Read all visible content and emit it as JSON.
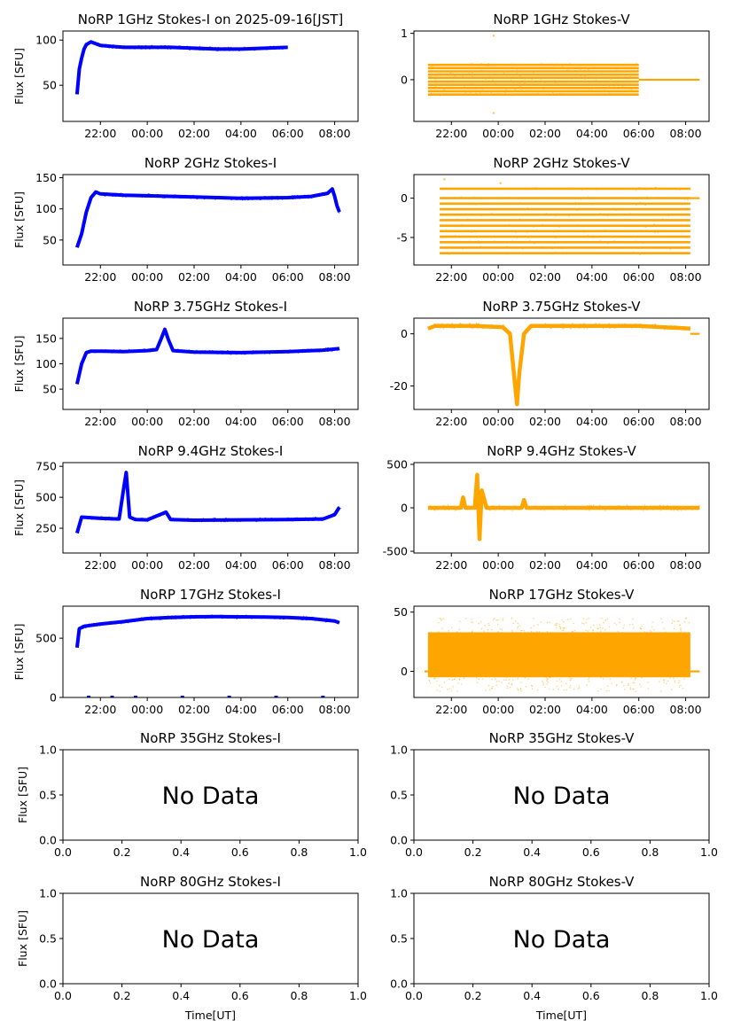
{
  "figure_title": "NoRP 1GHz Stokes-I on 2025-09-16[JST]",
  "colors": {
    "stokes_i": "#0000ff",
    "stokes_v": "#ffa500"
  },
  "time_ticks": [
    "22:00",
    "00:00",
    "02:00",
    "04:00",
    "06:00",
    "08:00"
  ],
  "chart_data": [
    {
      "id": "p1I",
      "type": "line",
      "title": "NoRP 1GHz Stokes-I on 2025-09-16[JST]",
      "ylabel": "Flux [SFU]",
      "xlabel": "",
      "xlim": [
        20.4,
        33.0
      ],
      "x_start": 21.0,
      "x_end": 30.0,
      "ylim": [
        10,
        110
      ],
      "yticks": [
        50,
        100
      ],
      "kind": "I",
      "color": "#0000ff",
      "x": [
        21.0,
        21.1,
        21.2,
        21.3,
        21.4,
        21.6,
        21.8,
        22.0,
        23.0,
        24.0,
        25.0,
        26.0,
        27.0,
        28.0,
        29.0,
        30.0
      ],
      "y": [
        40,
        68,
        80,
        90,
        95,
        98,
        96,
        94,
        92,
        92,
        92,
        91,
        90,
        90,
        91,
        92
      ]
    },
    {
      "id": "p1V",
      "type": "scatter",
      "title": "NoRP 1GHz Stokes-V",
      "ylabel": "",
      "xlabel": "",
      "xlim": [
        20.4,
        33.0
      ],
      "x_start": 21.0,
      "x_end": 30.0,
      "flat_end": 32.6,
      "ylim": [
        -0.9,
        1.05
      ],
      "yticks": [
        0,
        1
      ],
      "kind": "V",
      "color": "#ffa500",
      "levels": [
        -0.32,
        -0.25,
        -0.18,
        -0.11,
        -0.04,
        0.04,
        0.11,
        0.18,
        0.25,
        0.32
      ],
      "flat_value": 0,
      "spikes": [
        {
          "x": 23.8,
          "y": 0.95
        },
        {
          "x": 23.8,
          "y": -0.72
        }
      ]
    },
    {
      "id": "p2I",
      "type": "line",
      "title": "NoRP 2GHz Stokes-I",
      "ylabel": "Flux [SFU]",
      "xlabel": "",
      "xlim": [
        20.4,
        33.0
      ],
      "x_start": 21.0,
      "x_end": 32.2,
      "ylim": [
        10,
        155
      ],
      "yticks": [
        50,
        100,
        150
      ],
      "kind": "I",
      "color": "#0000ff",
      "x": [
        21.0,
        21.2,
        21.4,
        21.6,
        21.8,
        22.0,
        23.0,
        24.0,
        26.0,
        28.0,
        30.0,
        31.0,
        31.7,
        31.9,
        32.0,
        32.1,
        32.2
      ],
      "y": [
        38,
        60,
        95,
        118,
        127,
        124,
        122,
        121,
        119,
        117,
        118,
        120,
        125,
        132,
        120,
        105,
        95
      ]
    },
    {
      "id": "p2V",
      "type": "scatter",
      "title": "NoRP 2GHz Stokes-V",
      "ylabel": "",
      "xlabel": "",
      "xlim": [
        20.4,
        33.0
      ],
      "x_start": 21.5,
      "x_end": 32.2,
      "flat_end": 32.6,
      "ylim": [
        -8.5,
        3
      ],
      "yticks": [
        -5,
        0
      ],
      "kind": "V",
      "color": "#ffa500",
      "levels": [
        1.2,
        0,
        -0.7,
        -1.4,
        -2.1,
        -2.8,
        -3.5,
        -4.2,
        -4.9,
        -5.6,
        -6.3,
        -7.0
      ],
      "flat_value": 0,
      "spikes": [
        {
          "x": 21.7,
          "y": 2.4
        },
        {
          "x": 24.1,
          "y": 1.9
        }
      ]
    },
    {
      "id": "p3I",
      "type": "line",
      "title": "NoRP 3.75GHz Stokes-I",
      "ylabel": "Flux [SFU]",
      "xlabel": "",
      "xlim": [
        20.4,
        33.0
      ],
      "x_start": 21.0,
      "x_end": 32.2,
      "ylim": [
        10,
        190
      ],
      "yticks": [
        50,
        100,
        150
      ],
      "kind": "I",
      "color": "#0000ff",
      "x": [
        21.0,
        21.2,
        21.4,
        21.6,
        22.0,
        23.0,
        24.0,
        24.4,
        24.6,
        24.75,
        24.9,
        25.1,
        26.0,
        28.0,
        30.0,
        31.5,
        32.2
      ],
      "y": [
        60,
        100,
        122,
        125,
        125,
        124,
        126,
        128,
        150,
        168,
        148,
        126,
        123,
        122,
        124,
        127,
        130
      ]
    },
    {
      "id": "p3V",
      "type": "line",
      "title": "NoRP 3.75GHz Stokes-V",
      "ylabel": "",
      "xlabel": "",
      "xlim": [
        20.4,
        33.0
      ],
      "x_start": 21.0,
      "x_end": 32.2,
      "flat_end": 32.6,
      "ylim": [
        -29,
        6
      ],
      "yticks": [
        -20,
        0
      ],
      "kind": "V",
      "color": "#ffa500",
      "x": [
        21.0,
        21.3,
        22.0,
        23.0,
        24.2,
        24.5,
        24.7,
        24.8,
        24.9,
        25.1,
        25.4,
        26.0,
        28.0,
        30.0,
        32.2
      ],
      "y": [
        2,
        3,
        3,
        3,
        2.5,
        0,
        -18,
        -27,
        -15,
        0,
        3,
        3,
        3,
        3,
        2
      ]
    },
    {
      "id": "p4I",
      "type": "line",
      "title": "NoRP 9.4GHz Stokes-I",
      "ylabel": "Flux [SFU]",
      "xlabel": "",
      "xlim": [
        20.4,
        33.0
      ],
      "x_start": 21.0,
      "x_end": 32.2,
      "ylim": [
        50,
        780
      ],
      "yticks": [
        250,
        500,
        750
      ],
      "kind": "I",
      "color": "#0000ff",
      "x": [
        21.0,
        21.2,
        22.0,
        22.8,
        23.0,
        23.1,
        23.25,
        23.5,
        24.0,
        24.8,
        25.0,
        26.0,
        28.0,
        30.0,
        31.5,
        32.0,
        32.2
      ],
      "y": [
        210,
        340,
        330,
        325,
        580,
        700,
        340,
        320,
        318,
        380,
        320,
        315,
        318,
        320,
        325,
        360,
        420
      ]
    },
    {
      "id": "p4V",
      "type": "line",
      "title": "NoRP 9.4GHz Stokes-V",
      "ylabel": "",
      "xlabel": "",
      "xlim": [
        20.4,
        33.0
      ],
      "x_start": 21.0,
      "x_end": 32.6,
      "flat_end": 32.6,
      "ylim": [
        -520,
        520
      ],
      "yticks": [
        -500,
        0,
        500
      ],
      "kind": "V",
      "color": "#ffa500",
      "x": [
        21.0,
        22.4,
        22.5,
        22.6,
        23.0,
        23.1,
        23.2,
        23.3,
        23.5,
        25.0,
        25.1,
        25.2,
        28.0,
        30.0,
        32.6
      ],
      "y": [
        0,
        0,
        120,
        0,
        0,
        380,
        -360,
        200,
        0,
        0,
        90,
        0,
        0,
        0,
        0
      ]
    },
    {
      "id": "p5I",
      "type": "line",
      "title": "NoRP 17GHz Stokes-I",
      "ylabel": "Flux [SFU]",
      "xlabel": "",
      "xlim": [
        20.4,
        33.0
      ],
      "x_start": 21.0,
      "x_end": 32.2,
      "ylim": [
        0,
        770
      ],
      "yticks": [
        0,
        500
      ],
      "kind": "I",
      "color": "#0000ff",
      "x": [
        21.0,
        21.1,
        21.3,
        22.0,
        23.0,
        24.0,
        25.0,
        26.0,
        27.0,
        28.0,
        29.0,
        30.0,
        31.0,
        32.0,
        32.2
      ],
      "y": [
        420,
        580,
        600,
        620,
        640,
        665,
        675,
        680,
        682,
        680,
        678,
        675,
        665,
        645,
        630
      ],
      "zero_dots": [
        21.5,
        22.5,
        23.5,
        25.5,
        27.5,
        29.5,
        31.5
      ]
    },
    {
      "id": "p5V",
      "type": "scatter",
      "title": "NoRP 17GHz Stokes-V",
      "ylabel": "",
      "xlabel": "",
      "xlim": [
        20.4,
        33.0
      ],
      "x_start": 21.0,
      "x_end": 32.2,
      "flat_end": 32.6,
      "ylim": [
        -22,
        55
      ],
      "yticks": [
        0,
        50
      ],
      "kind": "band",
      "color": "#ffa500",
      "band": [
        -5,
        33
      ],
      "flat_value": 0
    },
    {
      "id": "p6I",
      "type": "empty",
      "title": "NoRP 35GHz Stokes-I",
      "ylabel": "Flux [SFU]",
      "xlabel": "",
      "xlim": [
        0,
        1
      ],
      "ylim": [
        0,
        1
      ],
      "yticks": [
        "0.0",
        "0.5",
        "1.0"
      ],
      "xticks": [
        "0.0",
        "0.2",
        "0.4",
        "0.6",
        "0.8",
        "1.0"
      ],
      "message": "No Data"
    },
    {
      "id": "p6V",
      "type": "empty",
      "title": "NoRP 35GHz Stokes-V",
      "ylabel": "",
      "xlabel": "",
      "xlim": [
        0,
        1
      ],
      "ylim": [
        0,
        1
      ],
      "yticks": [
        "0.0",
        "0.5",
        "1.0"
      ],
      "xticks": [
        "0.0",
        "0.2",
        "0.4",
        "0.6",
        "0.8",
        "1.0"
      ],
      "message": "No Data"
    },
    {
      "id": "p7I",
      "type": "empty",
      "title": "NoRP 80GHz Stokes-I",
      "ylabel": "Flux [SFU]",
      "xlabel": "Time[UT]",
      "xlim": [
        0,
        1
      ],
      "ylim": [
        0,
        1
      ],
      "yticks": [
        "0.0",
        "0.5",
        "1.0"
      ],
      "xticks": [
        "0.0",
        "0.2",
        "0.4",
        "0.6",
        "0.8",
        "1.0"
      ],
      "message": "No Data"
    },
    {
      "id": "p7V",
      "type": "empty",
      "title": "NoRP 80GHz Stokes-V",
      "ylabel": "",
      "xlabel": "Time[UT]",
      "xlim": [
        0,
        1
      ],
      "ylim": [
        0,
        1
      ],
      "yticks": [
        "0.0",
        "0.5",
        "1.0"
      ],
      "xticks": [
        "0.0",
        "0.2",
        "0.4",
        "0.6",
        "0.8",
        "1.0"
      ],
      "message": "No Data"
    }
  ]
}
